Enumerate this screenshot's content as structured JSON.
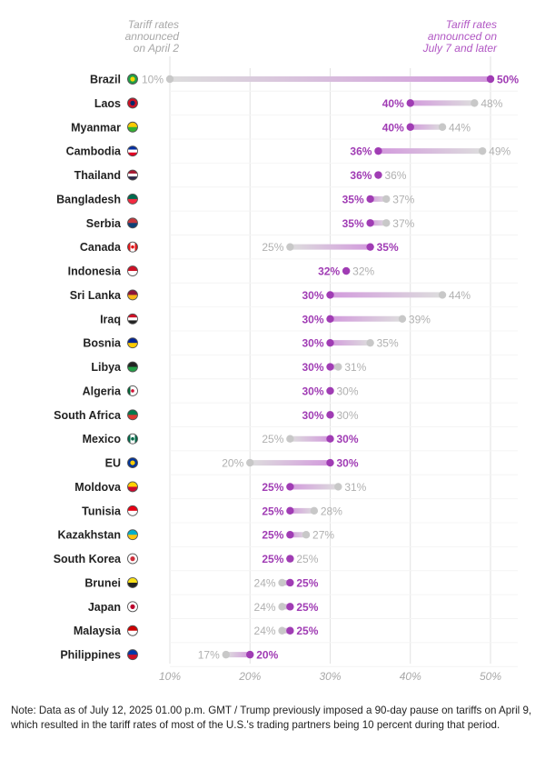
{
  "chart_data": {
    "type": "dumbbell",
    "series": [
      {
        "name": "Tariff rates announced on April 2",
        "color": "#c8c8c8",
        "key": "april2"
      },
      {
        "name": "Tariff rates announced on July 7 and later",
        "color": "#a03cb4",
        "key": "july7"
      }
    ],
    "legend_labels": {
      "april2": [
        "Tariff rates",
        "announced",
        "on April 2"
      ],
      "july7": [
        "Tariff rates",
        "announced on",
        "July 7 and later"
      ]
    },
    "x_ticks": [
      10,
      20,
      30,
      40,
      50
    ],
    "x_tick_labels": [
      "10%",
      "20%",
      "30%",
      "40%",
      "50%"
    ],
    "xlim": [
      10,
      50
    ],
    "rows": [
      {
        "country": "Brazil",
        "flag": "brazil-flag-icon",
        "april2": 10,
        "july7": 50
      },
      {
        "country": "Laos",
        "flag": "laos-flag-icon",
        "april2": 48,
        "july7": 40
      },
      {
        "country": "Myanmar",
        "flag": "myanmar-flag-icon",
        "april2": 44,
        "july7": 40
      },
      {
        "country": "Cambodia",
        "flag": "cambodia-flag-icon",
        "april2": 49,
        "july7": 36
      },
      {
        "country": "Thailand",
        "flag": "thailand-flag-icon",
        "april2": 36,
        "july7": 36
      },
      {
        "country": "Bangladesh",
        "flag": "bangladesh-flag-icon",
        "april2": 37,
        "july7": 35
      },
      {
        "country": "Serbia",
        "flag": "serbia-flag-icon",
        "april2": 37,
        "july7": 35
      },
      {
        "country": "Canada",
        "flag": "canada-flag-icon",
        "april2": 25,
        "july7": 35
      },
      {
        "country": "Indonesia",
        "flag": "indonesia-flag-icon",
        "april2": 32,
        "july7": 32
      },
      {
        "country": "Sri Lanka",
        "flag": "sri-lanka-flag-icon",
        "april2": 44,
        "july7": 30
      },
      {
        "country": "Iraq",
        "flag": "iraq-flag-icon",
        "april2": 39,
        "july7": 30
      },
      {
        "country": "Bosnia",
        "flag": "bosnia-flag-icon",
        "april2": 35,
        "july7": 30
      },
      {
        "country": "Libya",
        "flag": "libya-flag-icon",
        "april2": 31,
        "july7": 30
      },
      {
        "country": "Algeria",
        "flag": "algeria-flag-icon",
        "april2": 30,
        "july7": 30
      },
      {
        "country": "South Africa",
        "flag": "south-africa-flag-icon",
        "april2": 30,
        "july7": 30
      },
      {
        "country": "Mexico",
        "flag": "mexico-flag-icon",
        "april2": 25,
        "july7": 30
      },
      {
        "country": "EU",
        "flag": "eu-flag-icon",
        "april2": 20,
        "july7": 30
      },
      {
        "country": "Moldova",
        "flag": "moldova-flag-icon",
        "april2": 31,
        "july7": 25
      },
      {
        "country": "Tunisia",
        "flag": "tunisia-flag-icon",
        "april2": 28,
        "july7": 25
      },
      {
        "country": "Kazakhstan",
        "flag": "kazakhstan-flag-icon",
        "april2": 27,
        "july7": 25
      },
      {
        "country": "South Korea",
        "flag": "south-korea-flag-icon",
        "april2": 25,
        "july7": 25
      },
      {
        "country": "Brunei",
        "flag": "brunei-flag-icon",
        "april2": 24,
        "july7": 25
      },
      {
        "country": "Japan",
        "flag": "japan-flag-icon",
        "april2": 24,
        "july7": 25
      },
      {
        "country": "Malaysia",
        "flag": "malaysia-flag-icon",
        "april2": 24,
        "july7": 25
      },
      {
        "country": "Philippines",
        "flag": "philippines-flag-icon",
        "april2": 17,
        "july7": 20
      }
    ]
  },
  "note": "Note: Data as of July 12, 2025 01.00 p.m. GMT / Trump previously imposed a 90-day pause on tariffs on April 9, which resulted in the tariff rates of most of the U.S.'s trading partners being 10 percent during that period."
}
